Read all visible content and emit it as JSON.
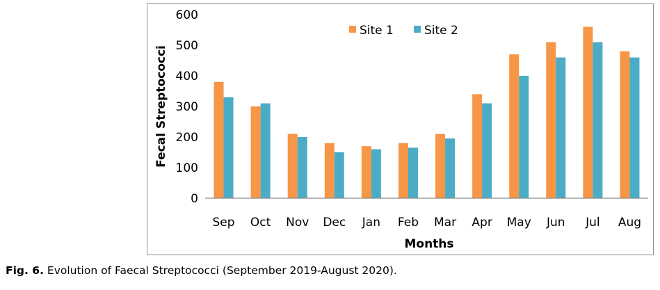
{
  "chart_data": {
    "type": "bar",
    "title": "",
    "xlabel": "Months",
    "ylabel": "Fecal Streptococci",
    "ylim": [
      0,
      600
    ],
    "yticks": [
      0,
      100,
      200,
      300,
      400,
      500,
      600
    ],
    "categories": [
      "Sep",
      "Oct",
      "Nov",
      "Dec",
      "Jan",
      "Feb",
      "Mar",
      "Apr",
      "May",
      "Jun",
      "Jul",
      "Aug"
    ],
    "series": [
      {
        "name": "Site 1",
        "color": "#f79646",
        "values": [
          380,
          300,
          210,
          180,
          170,
          180,
          210,
          340,
          470,
          510,
          560,
          480
        ]
      },
      {
        "name": "Site 2",
        "color": "#4bacc6",
        "values": [
          330,
          310,
          200,
          150,
          160,
          165,
          195,
          310,
          400,
          460,
          510,
          460
        ]
      }
    ],
    "legend_position": "top-center",
    "grid": false
  },
  "caption": {
    "label": "Fig. 6.",
    "text": " Evolution of Faecal Streptococci (September 2019-August 2020)."
  }
}
